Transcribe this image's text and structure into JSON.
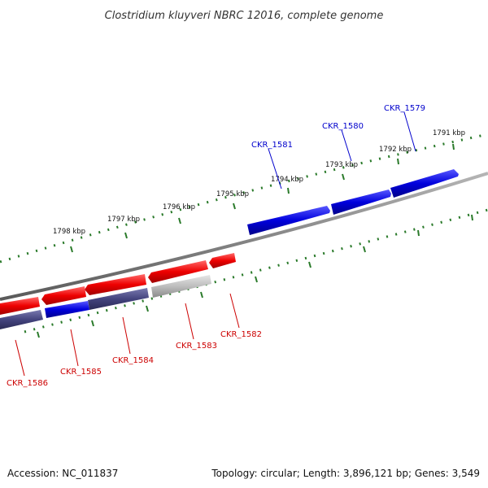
{
  "title": "Clostridium kluyveri NBRC 12016, complete genome",
  "footer": {
    "accession": "Accession: NC_011837",
    "summary": "Topology: circular; Length: 3,896,121 bp; Genes: 3,549"
  },
  "colors": {
    "forward_gene": "#0000dd",
    "reverse_gene": "#ee0000",
    "reverse_gene_light": "#aaaaaa",
    "reverse_gene_dark": "#444488",
    "backbone": "#808080",
    "tick": "#2a7a2a",
    "forward_label": "#0000cc",
    "reverse_label": "#cc0000"
  },
  "scale_labels": [
    "1791 kbp",
    "1792 kbp",
    "1793 kbp",
    "1794 kbp",
    "1795 kbp",
    "1796 kbp",
    "1797 kbp",
    "1798 kbp"
  ],
  "forward_genes": [
    {
      "label": "CKR_1579"
    },
    {
      "label": "CKR_1580"
    },
    {
      "label": "CKR_1581"
    }
  ],
  "reverse_genes": [
    {
      "label": "CKR_1582"
    },
    {
      "label": "CKR_1583"
    },
    {
      "label": "CKR_1584"
    },
    {
      "label": "CKR_1585"
    },
    {
      "label": "CKR_1586"
    }
  ]
}
